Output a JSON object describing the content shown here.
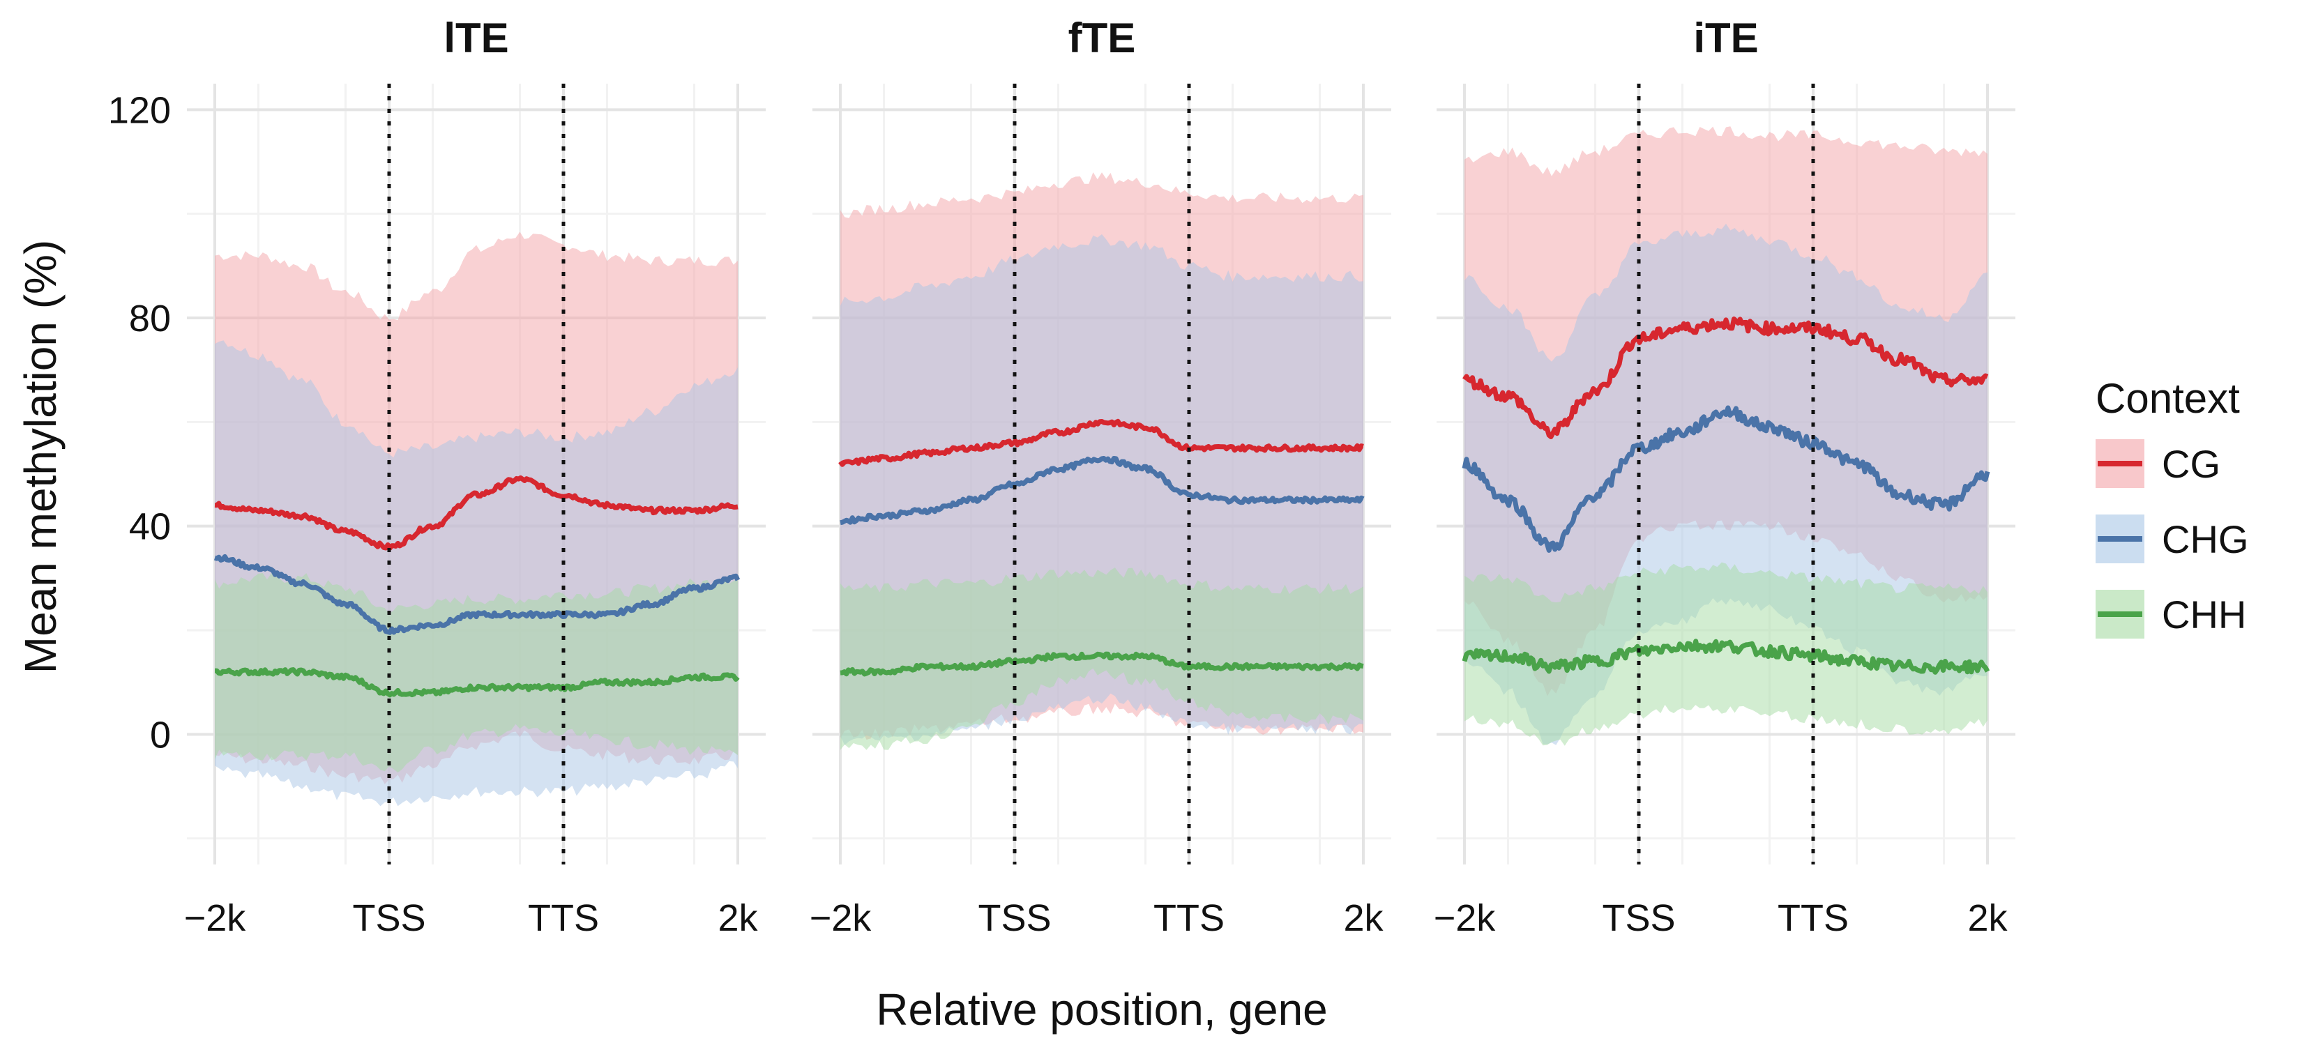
{
  "chart_data": {
    "type": "line",
    "ylabel": "Mean methylation (%)",
    "xlabel": "Relative position, gene",
    "ylim": [
      -25,
      125
    ],
    "yticks": [
      0,
      40,
      80,
      120
    ],
    "x_tick_labels": [
      "−2k",
      "TSS",
      "TTS",
      "2k"
    ],
    "x_tick_positions": [
      0,
      1,
      2,
      3
    ],
    "xlim": [
      0,
      3
    ],
    "vlines": [
      1,
      2
    ],
    "legend": {
      "title": "Context",
      "position": "right",
      "entries": [
        {
          "label": "CG",
          "color": "#d7272f",
          "band_color": "#f4a3a8"
        },
        {
          "label": "CHG",
          "color": "#4a73a8",
          "band_color": "#a9c6e6"
        },
        {
          "label": "CHH",
          "color": "#4aa34a",
          "band_color": "#a6dba3"
        }
      ]
    },
    "panels": [
      {
        "title": "lTE",
        "x": [
          0,
          0.25,
          0.5,
          0.75,
          1,
          1.25,
          1.5,
          1.75,
          2,
          2.25,
          2.5,
          2.75,
          3
        ],
        "series": [
          {
            "name": "CG",
            "mean": [
              44,
              43,
              42,
              39,
              36,
              40,
              46,
              49,
              46,
              44,
              43,
              43,
              44
            ],
            "upper": [
              92,
              92,
              90,
              85,
              80,
              85,
              93,
              96,
              94,
              92,
              91,
              91,
              91
            ],
            "lower": [
              -4,
              -5,
              -6,
              -8,
              -9,
              -6,
              -2,
              0,
              -3,
              -4,
              -5,
              -5,
              -4
            ]
          },
          {
            "name": "CHG",
            "mean": [
              34,
              32,
              29,
              25,
              20,
              21,
              23,
              23,
              23,
              23,
              25,
              28,
              30
            ],
            "upper": [
              76,
              73,
              68,
              60,
              54,
              55,
              57,
              58,
              57,
              58,
              62,
              67,
              70
            ],
            "lower": [
              -7,
              -8,
              -10,
              -12,
              -13,
              -12,
              -11,
              -11,
              -11,
              -10,
              -9,
              -8,
              -6
            ]
          },
          {
            "name": "CHH",
            "mean": [
              12,
              12,
              12,
              11,
              8,
              8,
              9,
              9,
              9,
              10,
              10,
              11,
              11
            ],
            "upper": [
              29,
              30,
              30,
              28,
              24,
              25,
              26,
              26,
              27,
              27,
              28,
              29,
              30
            ],
            "lower": [
              -4,
              -4,
              -4,
              -4,
              -7,
              -3,
              0,
              1,
              0,
              -1,
              -2,
              -3,
              -4
            ]
          }
        ]
      },
      {
        "title": "fTE",
        "x": [
          0,
          0.25,
          0.5,
          0.75,
          1,
          1.25,
          1.5,
          1.75,
          2,
          2.25,
          2.5,
          2.75,
          3
        ],
        "series": [
          {
            "name": "CG",
            "mean": [
              52,
              53,
              54,
              55,
              56,
              58,
              60,
              59,
              55,
              55,
              55,
              55,
              55
            ],
            "upper": [
              100,
              101,
              102,
              103,
              104,
              106,
              107,
              106,
              104,
              103,
              103,
              103,
              103
            ],
            "lower": [
              0,
              0,
              1,
              2,
              3,
              4,
              5,
              4,
              2,
              1,
              1,
              1,
              1
            ]
          },
          {
            "name": "CHG",
            "mean": [
              41,
              42,
              43,
              45,
              48,
              51,
              53,
              51,
              46,
              45,
              45,
              45,
              45
            ],
            "upper": [
              83,
              84,
              86,
              88,
              91,
              94,
              95,
              94,
              90,
              88,
              88,
              88,
              88
            ],
            "lower": [
              -1,
              -1,
              0,
              1,
              3,
              5,
              7,
              5,
              2,
              1,
              1,
              1,
              1
            ]
          },
          {
            "name": "CHH",
            "mean": [
              12,
              12,
              13,
              13,
              14,
              15,
              15,
              15,
              13,
              13,
              13,
              13,
              13
            ],
            "upper": [
              28,
              28,
              29,
              29,
              30,
              31,
              31,
              31,
              29,
              28,
              28,
              28,
              28
            ],
            "lower": [
              -2,
              -2,
              -1,
              2,
              6,
              10,
              12,
              10,
              6,
              4,
              3,
              3,
              3
            ]
          }
        ]
      },
      {
        "title": "iTE",
        "x": [
          0,
          0.25,
          0.5,
          0.75,
          1,
          1.25,
          1.5,
          1.75,
          2,
          2.25,
          2.5,
          2.75,
          3
        ],
        "series": [
          {
            "name": "CG",
            "mean": [
              68,
              65,
              58,
              66,
              76,
              78,
              79,
              78,
              78,
              76,
              72,
              68,
              68
            ],
            "upper": [
              110,
              112,
              108,
              112,
              115,
              116,
              116,
              115,
              115,
              114,
              113,
              112,
              112
            ],
            "lower": [
              26,
              18,
              8,
              20,
              38,
              40,
              40,
              40,
              38,
              34,
              30,
              26,
              26
            ]
          },
          {
            "name": "CHG",
            "mean": [
              52,
              45,
              36,
              46,
              55,
              58,
              62,
              59,
              56,
              52,
              46,
              44,
              50
            ],
            "upper": [
              88,
              82,
              72,
              84,
              94,
              96,
              97,
              95,
              92,
              88,
              82,
              80,
              88
            ],
            "lower": [
              14,
              8,
              -2,
              8,
              20,
              22,
              26,
              24,
              20,
              16,
              10,
              8,
              12
            ]
          },
          {
            "name": "CHH",
            "mean": [
              15,
              15,
              13,
              14,
              16,
              17,
              17,
              16,
              15,
              14,
              13,
              13,
              13
            ],
            "upper": [
              30,
              30,
              26,
              28,
              31,
              32,
              32,
              31,
              30,
              29,
              28,
              28,
              28
            ],
            "lower": [
              3,
              2,
              -2,
              1,
              4,
              5,
              5,
              4,
              3,
              2,
              1,
              1,
              2
            ]
          }
        ]
      }
    ]
  }
}
